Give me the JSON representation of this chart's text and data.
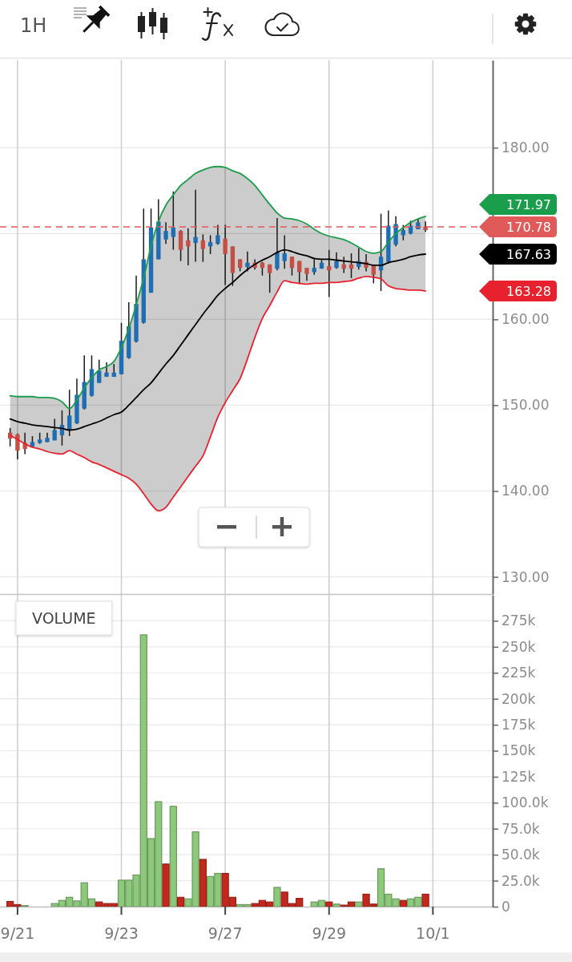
{
  "chart_data": [
    {
      "type": "candlestick",
      "categories": [
        null,
        null,
        null,
        null,
        null,
        null,
        null,
        null,
        null,
        null,
        null,
        null,
        null,
        null,
        null,
        null,
        null,
        null,
        null,
        null,
        null,
        null,
        null,
        null,
        null,
        null,
        null,
        null,
        null,
        null,
        null,
        null,
        null,
        null,
        null,
        null,
        null,
        null,
        null,
        null,
        null,
        null,
        null,
        null,
        null,
        null,
        null,
        null,
        null,
        null,
        null,
        null,
        null,
        null,
        null,
        null,
        null,
        null
      ],
      "ohlc": [
        [
          146.8,
          147.35,
          145.2,
          146.1
        ],
        [
          146.6,
          146.7,
          143.7,
          144.7
        ],
        [
          145.6,
          146.8,
          144.3,
          144.9
        ],
        [
          145.2,
          146.4,
          145.1,
          145.7
        ],
        [
          145.6,
          146.8,
          145.5,
          146.0
        ],
        [
          145.7,
          146.8,
          145.7,
          146.2
        ],
        [
          145.9,
          148.4,
          145.9,
          147.1
        ],
        [
          146.5,
          149.4,
          145.3,
          147.7
        ],
        [
          147.2,
          151.8,
          146.4,
          148.8
        ],
        [
          147.9,
          153.1,
          147.8,
          151.2
        ],
        [
          149.6,
          155.8,
          149.5,
          152.7
        ],
        [
          151.1,
          155.8,
          151.0,
          154.2
        ],
        [
          152.6,
          155.3,
          152.6,
          154.0
        ],
        [
          153.3,
          155.0,
          153.3,
          153.8
        ],
        [
          153.3,
          154.8,
          153.3,
          153.8
        ],
        [
          153.6,
          159.6,
          153.6,
          157.5
        ],
        [
          155.5,
          162.0,
          155.4,
          159.2
        ],
        [
          157.4,
          165.1,
          157.3,
          161.8
        ],
        [
          159.6,
          172.9,
          159.5,
          167.0
        ],
        [
          163.1,
          172.9,
          163.1,
          170.7
        ],
        [
          167.0,
          174.0,
          167.0,
          171.4
        ],
        [
          169.3,
          171.3,
          168.8,
          170.3
        ],
        [
          169.6,
          174.9,
          168.1,
          170.7
        ],
        [
          170.3,
          170.4,
          166.8,
          168.1
        ],
        [
          169.2,
          170.6,
          166.3,
          168.5
        ],
        [
          168.9,
          175.1,
          166.7,
          169.6
        ],
        [
          169.2,
          169.9,
          166.7,
          168.2
        ],
        [
          168.5,
          169.8,
          167.6,
          169.0
        ],
        [
          168.8,
          171.0,
          168.7,
          169.8
        ],
        [
          169.4,
          171.0,
          164.0,
          167.6
        ],
        [
          168.5,
          168.5,
          163.9,
          165.4
        ],
        [
          167.0,
          167.0,
          165.6,
          166.0
        ],
        [
          166.1,
          167.9,
          165.6,
          166.6
        ],
        [
          166.6,
          167.0,
          165.8,
          166.0
        ],
        [
          166.6,
          166.7,
          165.1,
          166.0
        ],
        [
          166.4,
          166.4,
          163.1,
          165.4
        ],
        [
          165.9,
          171.8,
          165.7,
          167.8
        ],
        [
          166.8,
          169.8,
          165.9,
          167.7
        ],
        [
          167.3,
          167.3,
          165.1,
          166.0
        ],
        [
          166.8,
          166.8,
          164.1,
          165.5
        ],
        [
          166.0,
          166.0,
          164.5,
          165.3
        ],
        [
          165.5,
          167.1,
          165.2,
          166.0
        ],
        [
          165.9,
          166.9,
          165.9,
          166.6
        ],
        [
          166.2,
          168.1,
          162.6,
          165.7
        ],
        [
          166.0,
          167.8,
          165.9,
          166.8
        ],
        [
          166.4,
          167.3,
          165.4,
          165.9
        ],
        [
          166.4,
          167.7,
          164.8,
          165.9
        ],
        [
          166.1,
          168.3,
          165.8,
          166.8
        ],
        [
          166.7,
          167.6,
          165.6,
          166.0
        ],
        [
          166.3,
          166.3,
          164.2,
          165.2
        ],
        [
          165.7,
          172.3,
          163.3,
          167.3
        ],
        [
          166.7,
          172.7,
          166.5,
          170.9
        ],
        [
          168.7,
          172.0,
          168.5,
          171.1
        ],
        [
          169.8,
          171.0,
          169.2,
          170.4
        ],
        [
          170.0,
          171.5,
          169.9,
          170.9
        ],
        [
          170.5,
          171.8,
          170.5,
          171.3
        ],
        [
          170.8,
          171.4,
          170.2,
          170.4
        ],
        null
      ],
      "colors": [
        "#c44f47",
        "#c44f47",
        "#c44f47",
        "#1f6eb4",
        "#1f6eb4",
        "#1f6eb4",
        "#1f6eb4",
        "#1f6eb4",
        "#1f6eb4",
        "#1f6eb4",
        "#1f6eb4",
        "#1f6eb4",
        "#1f6eb4",
        "#1f6eb4",
        "#1f6eb4",
        "#1f6eb4",
        "#1f6eb4",
        "#1f6eb4",
        "#1f6eb4",
        "#1f6eb4",
        "#1f6eb4",
        "#1f6eb4",
        "#1f6eb4",
        "#c44f47",
        "#c44f47",
        "#1f6eb4",
        "#c44f47",
        "#1f6eb4",
        "#1f6eb4",
        "#c44f47",
        "#c44f47",
        "#c44f47",
        "#1f6eb4",
        "#c44f47",
        "#c44f47",
        "#c44f47",
        "#1f6eb4",
        "#1f6eb4",
        "#c44f47",
        "#c44f47",
        "#c44f47",
        "#1f6eb4",
        "#1f6eb4",
        "#c44f47",
        "#1f6eb4",
        "#c44f47",
        "#c44f47",
        "#1f6eb4",
        "#c44f47",
        "#c44f47",
        "#1f6eb4",
        "#1f6eb4",
        "#1f6eb4",
        "#1f6eb4",
        "#1f6eb4",
        "#1f6eb4",
        "#c44f47",
        null
      ],
      "series": [
        {
          "type": "line",
          "color": "#1b9e4b",
          "values": [
            151.1,
            151.0,
            151.0,
            151.0,
            150.9,
            150.9,
            150.8,
            150.4,
            149.6,
            150.6,
            152.0,
            153.2,
            154.1,
            154.5,
            155.1,
            156.7,
            158.9,
            161.7,
            164.8,
            168.5,
            171.4,
            173.3,
            174.5,
            175.6,
            176.3,
            177.0,
            177.4,
            177.7,
            177.8,
            177.7,
            177.3,
            177.0,
            176.4,
            175.6,
            174.5,
            173.4,
            172.4,
            171.8,
            171.7,
            171.5,
            171.1,
            170.5,
            170.0,
            169.7,
            169.5,
            169.3,
            168.9,
            168.4,
            167.9,
            167.7,
            167.9,
            169.0,
            170.0,
            170.7,
            171.3,
            171.7,
            172.0,
            null
          ]
        },
        {
          "type": "line",
          "color": "#000000",
          "values": [
            148.4,
            148.1,
            147.9,
            147.7,
            147.6,
            147.5,
            147.4,
            147.3,
            147.1,
            147.2,
            147.5,
            147.8,
            148.1,
            148.5,
            148.9,
            149.2,
            150.0,
            150.9,
            151.8,
            152.6,
            153.7,
            154.8,
            155.8,
            157.0,
            158.2,
            159.4,
            160.6,
            161.7,
            162.8,
            163.6,
            164.3,
            165.1,
            165.8,
            166.4,
            166.9,
            167.3,
            167.8,
            168.1,
            167.9,
            167.6,
            167.4,
            167.1,
            167.0,
            167.0,
            166.9,
            166.8,
            166.7,
            166.6,
            166.5,
            166.3,
            166.3,
            166.6,
            166.8,
            167.0,
            167.3,
            167.5,
            167.6,
            null
          ],
          "lower": [
            146.5,
            146.0,
            145.5,
            145.1,
            144.9,
            144.6,
            144.4,
            144.3,
            144.7,
            144.3,
            143.9,
            143.4,
            143.1,
            142.7,
            142.3,
            141.9,
            141.5,
            140.8,
            139.7,
            138.5,
            137.7,
            138.1,
            139.3,
            140.5,
            141.7,
            142.9,
            144.1,
            146.3,
            148.6,
            150.3,
            151.7,
            153.1,
            155.4,
            157.9,
            160.1,
            161.6,
            163.2,
            164.5,
            164.3,
            164.2,
            164.1,
            164.2,
            164.2,
            164.3,
            164.3,
            164.4,
            164.5,
            164.8,
            165.0,
            164.9,
            164.7,
            163.9,
            163.6,
            163.5,
            163.4,
            163.4,
            163.3,
            null
          ],
          "upper": [
            151.1,
            151.0,
            151.0,
            151.0,
            150.9,
            150.9,
            150.8,
            150.4,
            149.6,
            150.6,
            152.0,
            153.2,
            154.1,
            154.5,
            155.1,
            156.7,
            158.9,
            161.7,
            164.8,
            168.5,
            171.4,
            173.3,
            174.5,
            175.6,
            176.3,
            177.0,
            177.4,
            177.7,
            177.8,
            177.7,
            177.3,
            177.0,
            176.4,
            175.6,
            174.5,
            173.4,
            172.4,
            171.8,
            171.7,
            171.5,
            171.1,
            170.5,
            170.0,
            169.7,
            169.5,
            169.3,
            168.9,
            168.4,
            167.9,
            167.7,
            167.9,
            169.0,
            170.0,
            170.7,
            171.3,
            171.7,
            172.0,
            null
          ]
        },
        {
          "type": "line",
          "color": "#e8212e",
          "values": [
            146.5,
            146.0,
            145.5,
            145.1,
            144.9,
            144.6,
            144.4,
            144.3,
            144.7,
            144.3,
            143.9,
            143.4,
            143.1,
            142.7,
            142.3,
            141.9,
            141.5,
            140.8,
            139.7,
            138.5,
            137.7,
            138.1,
            139.3,
            140.5,
            141.7,
            142.9,
            144.1,
            146.3,
            148.6,
            150.3,
            151.7,
            153.1,
            155.4,
            157.9,
            160.1,
            161.6,
            163.2,
            164.5,
            164.3,
            164.2,
            164.1,
            164.2,
            164.2,
            164.3,
            164.3,
            164.4,
            164.5,
            164.8,
            165.0,
            164.9,
            164.7,
            163.9,
            163.6,
            163.5,
            163.4,
            163.4,
            163.3,
            null
          ]
        }
      ],
      "ylim": [
        128,
        190.2
      ],
      "yticks": [
        {
          "value": 130,
          "label": "130.00"
        },
        {
          "value": 140,
          "label": "140.00"
        },
        {
          "value": 150,
          "label": "150.00"
        },
        {
          "value": 160,
          "label": "160.00"
        },
        {
          "value": 170,
          "label": null
        },
        {
          "value": 180,
          "label": "180.00"
        }
      ],
      "grid": true,
      "ref_lines": [
        {
          "axis": "y",
          "value": 170.78,
          "label": "170.78",
          "color": "#e05a5a",
          "line_style": "dashed"
        }
      ],
      "annotations": [
        "1H",
        "171.97",
        "167.63",
        "163.28"
      ]
    },
    {
      "type": "bar",
      "title": "VOLUME",
      "categories": [
        null,
        "9/21",
        null,
        null,
        null,
        null,
        null,
        null,
        null,
        null,
        null,
        null,
        null,
        null,
        null,
        "9/23",
        null,
        null,
        null,
        null,
        null,
        null,
        null,
        null,
        null,
        null,
        null,
        null,
        null,
        "9/27",
        null,
        null,
        null,
        null,
        null,
        null,
        null,
        null,
        null,
        null,
        null,
        null,
        null,
        "9/29",
        null,
        null,
        null,
        null,
        null,
        null,
        null,
        null,
        null,
        null,
        null,
        null,
        null,
        "10/1"
      ],
      "values": [
        5000,
        2000,
        1000,
        0,
        0,
        0,
        3000,
        6000,
        9000,
        5500,
        23000,
        7500,
        4500,
        3000,
        3000,
        25500,
        25500,
        30500,
        261500,
        65500,
        101000,
        41000,
        96500,
        9000,
        7500,
        72000,
        45500,
        29000,
        32000,
        32000,
        9000,
        2000,
        2000,
        3000,
        6000,
        4500,
        18500,
        14000,
        3000,
        8000,
        0,
        4500,
        6000,
        4500,
        2500,
        1500,
        4500,
        4500,
        12000,
        2500,
        36500,
        12000,
        7500,
        6000,
        7500,
        9000,
        12000,
        null
      ],
      "colors": [
        "#c4281c",
        "#c4281c",
        "#8cc97b",
        null,
        null,
        null,
        "#8cc97b",
        "#8cc97b",
        "#8cc97b",
        "#8cc97b",
        "#8cc97b",
        "#8cc97b",
        "#c4281c",
        "#c4281c",
        "#c4281c",
        "#8cc97b",
        "#8cc97b",
        "#8cc97b",
        "#8cc97b",
        "#8cc97b",
        "#8cc97b",
        "#c4281c",
        "#8cc97b",
        "#c4281c",
        "#8cc97b",
        "#8cc97b",
        "#c4281c",
        "#8cc97b",
        "#8cc97b",
        "#c4281c",
        "#c4281c",
        "#8cc97b",
        "#8cc97b",
        "#c4281c",
        "#c4281c",
        "#c4281c",
        "#8cc97b",
        "#c4281c",
        "#c4281c",
        "#c4281c",
        null,
        "#8cc97b",
        "#8cc97b",
        "#c4281c",
        "#8cc97b",
        "#c4281c",
        "#c4281c",
        "#8cc97b",
        "#c4281c",
        "#c4281c",
        "#8cc97b",
        "#8cc97b",
        "#8cc97b",
        "#c4281c",
        "#8cc97b",
        "#8cc97b",
        "#c4281c",
        null
      ],
      "ylim": [
        0,
        300000
      ],
      "yticks": [
        0,
        {
          "value": 25000,
          "label": "25.0k"
        },
        {
          "value": 50000,
          "label": "50.0k"
        },
        {
          "value": 75000,
          "label": "75.0k"
        },
        {
          "value": 100000,
          "label": "100.0k"
        },
        {
          "value": 125000,
          "label": "125k"
        },
        {
          "value": 150000,
          "label": "150k"
        },
        {
          "value": 175000,
          "label": "175k"
        },
        {
          "value": 200000,
          "label": "200k"
        },
        {
          "value": 225000,
          "label": "225k"
        },
        {
          "value": 250000,
          "label": "250k"
        },
        {
          "value": 275000,
          "label": "275k"
        }
      ],
      "grid": true
    }
  ]
}
